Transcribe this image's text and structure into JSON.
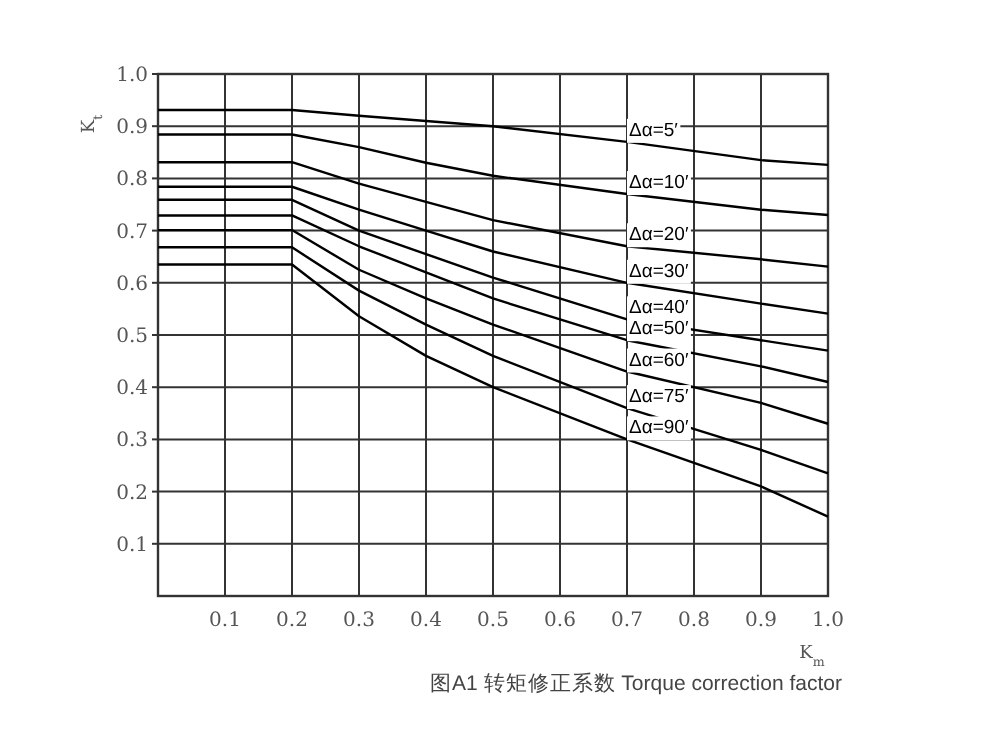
{
  "chart_data": {
    "type": "line",
    "title": "图A1 转矩修正系数 Torque correction factor",
    "xlabel": "K$_{m}$",
    "ylabel": "K$_{t}$",
    "x": [
      0,
      0.2,
      0.3,
      0.4,
      0.5,
      0.7,
      0.9,
      1.0
    ],
    "series": [
      {
        "name": "Δα=5′",
        "color": "#000000",
        "values": [
          0.931,
          0.931,
          0.92,
          0.91,
          0.9,
          0.87,
          0.835,
          0.826
        ]
      },
      {
        "name": "Δα=10′",
        "color": "#000000",
        "values": [
          0.884,
          0.884,
          0.86,
          0.83,
          0.805,
          0.77,
          0.74,
          0.73
        ]
      },
      {
        "name": "Δα=20′",
        "color": "#000000",
        "values": [
          0.831,
          0.831,
          0.79,
          0.755,
          0.72,
          0.67,
          0.645,
          0.631
        ]
      },
      {
        "name": "Δα=30′",
        "color": "#000000",
        "values": [
          0.784,
          0.784,
          0.74,
          0.7,
          0.66,
          0.6,
          0.56,
          0.541
        ]
      },
      {
        "name": "Δα=40′",
        "color": "#000000",
        "values": [
          0.759,
          0.759,
          0.7,
          0.655,
          0.61,
          0.53,
          0.49,
          0.47
        ]
      },
      {
        "name": "Δα=50′",
        "color": "#000000",
        "values": [
          0.729,
          0.729,
          0.67,
          0.62,
          0.57,
          0.49,
          0.44,
          0.41
        ]
      },
      {
        "name": "Δα=60′",
        "color": "#000000",
        "values": [
          0.701,
          0.701,
          0.625,
          0.57,
          0.52,
          0.43,
          0.37,
          0.33
        ]
      },
      {
        "name": "Δα=75′",
        "color": "#000000",
        "values": [
          0.668,
          0.668,
          0.585,
          0.52,
          0.46,
          0.36,
          0.28,
          0.235
        ]
      },
      {
        "name": "Δα=90′",
        "color": "#000000",
        "values": [
          0.635,
          0.635,
          0.536,
          0.46,
          0.4,
          0.3,
          0.21,
          0.152
        ]
      }
    ],
    "xlim": [
      0,
      1
    ],
    "ylim": [
      0,
      1
    ],
    "xticks": [
      0.1,
      0.2,
      0.3,
      0.4,
      0.5,
      0.6,
      0.7,
      0.8,
      0.9,
      {
        "value": 1,
        "label": "1.0"
      }
    ],
    "yticks": [
      0.1,
      0.2,
      0.3,
      0.4,
      0.5,
      0.6,
      0.7,
      0.8,
      0.9,
      {
        "value": 1,
        "label": "1.0"
      }
    ],
    "grid": true,
    "marker": "none",
    "line_style": "solid",
    "legend": false
  }
}
